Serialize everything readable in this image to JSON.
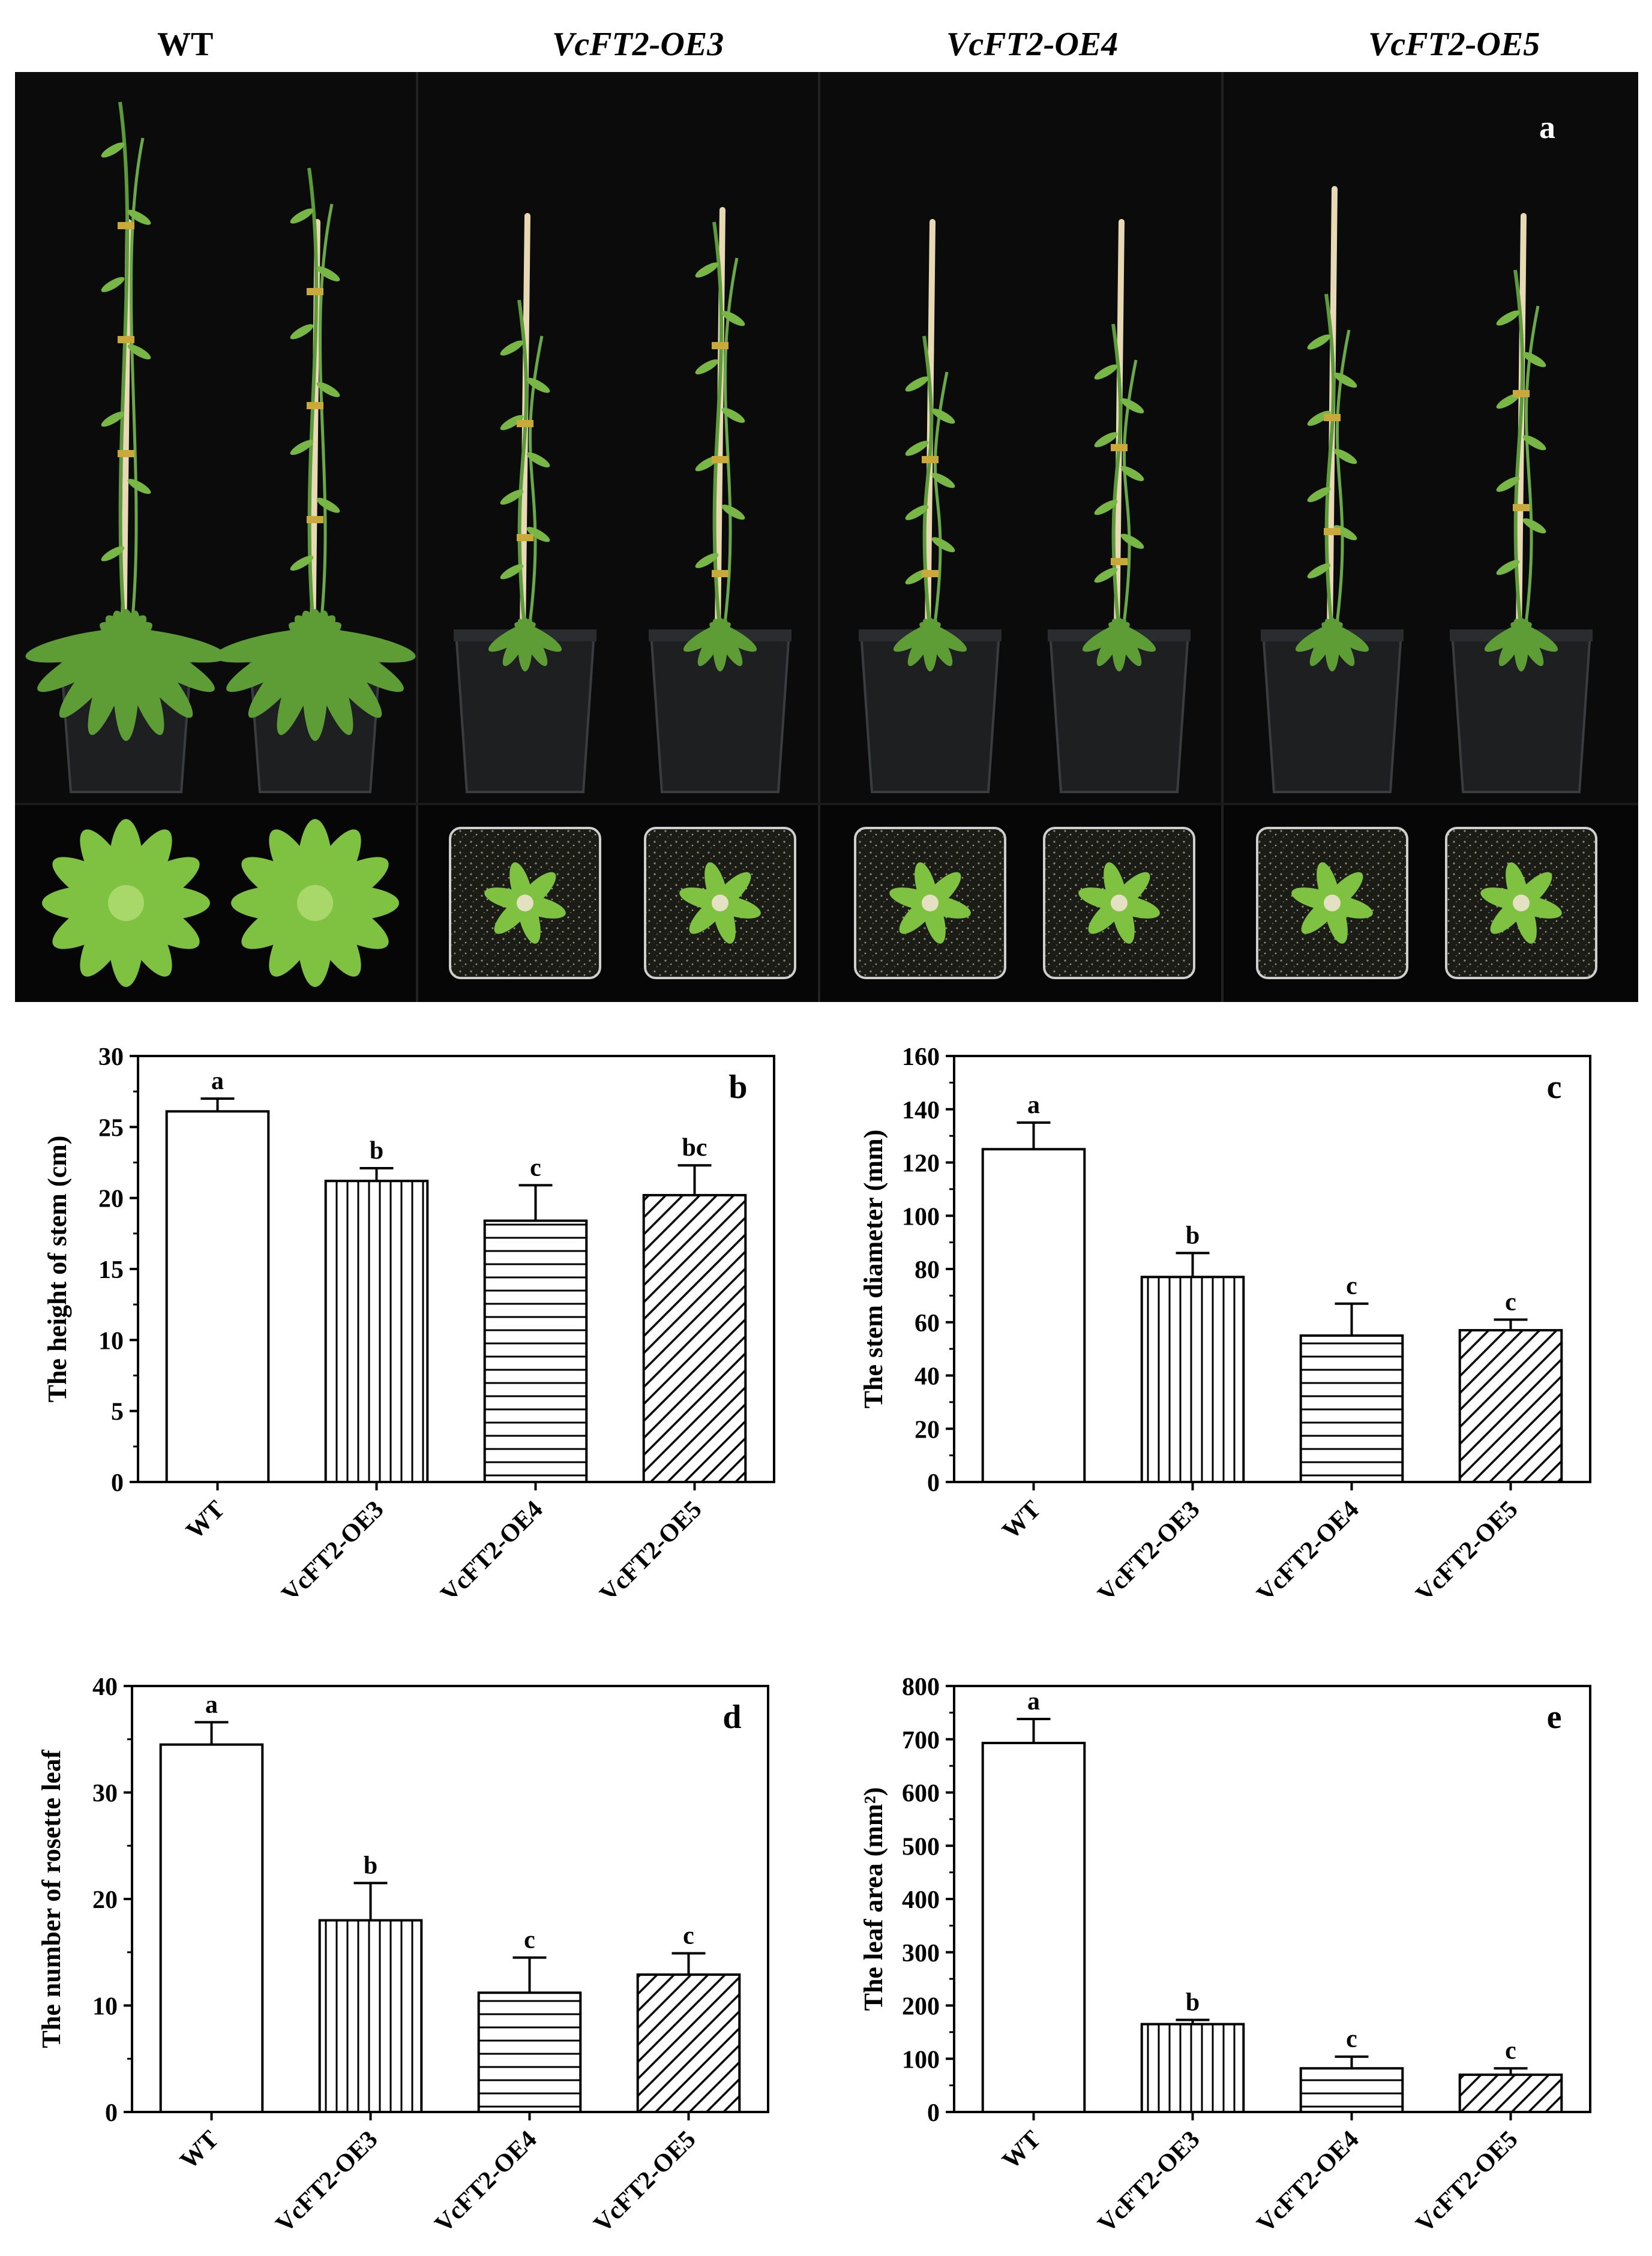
{
  "photo_panel": {
    "panel_letter": "a",
    "genotype_labels": [
      {
        "text": "WT",
        "italic": false
      },
      {
        "text": "VcFT2-OE3",
        "italic": true
      },
      {
        "text": "VcFT2-OE4",
        "italic": true
      },
      {
        "text": "VcFT2-OE5",
        "italic": true
      }
    ],
    "colors": {
      "background": "#0b0b0b",
      "pot": "#1d1f20",
      "stake": "#e8d9b5",
      "leaf": "#7fc241",
      "soil": "#1b1c16"
    }
  },
  "chart_data": [
    {
      "panel": "b",
      "type": "bar",
      "categories": [
        "WT",
        "VcFT2-OE3",
        "VcFT2-OE4",
        "VcFT2-OE5"
      ],
      "values": [
        26.1,
        21.2,
        18.4,
        20.2
      ],
      "errors": [
        0.9,
        0.9,
        2.5,
        2.1
      ],
      "significance": [
        "a",
        "b",
        "c",
        "bc"
      ],
      "patterns": [
        "none",
        "vertical",
        "horizontal",
        "diagonal"
      ],
      "ylabel": "The height of stem (cm)",
      "ylim": [
        0,
        30
      ],
      "yticks": [
        0,
        5,
        10,
        15,
        20,
        25,
        30
      ],
      "grid": false
    },
    {
      "panel": "c",
      "type": "bar",
      "categories": [
        "WT",
        "VcFT2-OE3",
        "VcFT2-OE4",
        "VcFT2-OE5"
      ],
      "values": [
        125,
        77,
        55,
        57
      ],
      "errors": [
        10,
        9,
        12,
        4
      ],
      "significance": [
        "a",
        "b",
        "c",
        "c"
      ],
      "patterns": [
        "none",
        "vertical",
        "horizontal",
        "diagonal"
      ],
      "ylabel": "The stem diameter (mm)",
      "ylim": [
        0,
        160
      ],
      "yticks": [
        0,
        20,
        40,
        60,
        80,
        100,
        120,
        140,
        160
      ],
      "grid": false
    },
    {
      "panel": "d",
      "type": "bar",
      "categories": [
        "WT",
        "VcFT2-OE3",
        "VcFT2-OE4",
        "VcFT2-OE5"
      ],
      "values": [
        34.5,
        18.0,
        11.2,
        12.9
      ],
      "errors": [
        2.1,
        3.5,
        3.3,
        2.0
      ],
      "significance": [
        "a",
        "b",
        "c",
        "c"
      ],
      "patterns": [
        "none",
        "vertical",
        "horizontal",
        "diagonal"
      ],
      "ylabel": "The number of rosette leaf",
      "ylim": [
        0,
        40
      ],
      "yticks": [
        0,
        10,
        20,
        30,
        40
      ],
      "grid": false
    },
    {
      "panel": "e",
      "type": "bar",
      "categories": [
        "WT",
        "VcFT2-OE3",
        "VcFT2-OE4",
        "VcFT2-OE5"
      ],
      "values": [
        693,
        165,
        82,
        70
      ],
      "errors": [
        45,
        8,
        22,
        12
      ],
      "significance": [
        "a",
        "b",
        "c",
        "c"
      ],
      "patterns": [
        "none",
        "vertical",
        "horizontal",
        "diagonal"
      ],
      "ylabel": "The leaf area (mm²)",
      "ylim": [
        0,
        800
      ],
      "yticks": [
        0,
        100,
        200,
        300,
        400,
        500,
        600,
        700,
        800
      ],
      "grid": false
    }
  ]
}
